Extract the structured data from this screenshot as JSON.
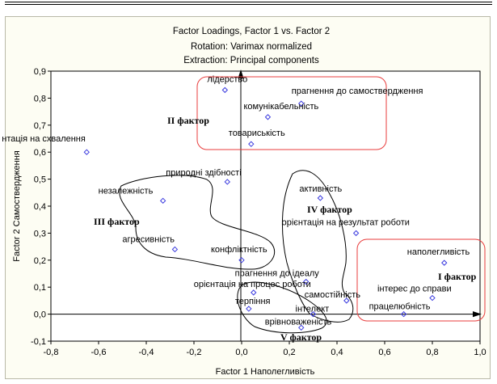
{
  "chart_data": {
    "type": "scatter",
    "title": "Factor Loadings, Factor 1 vs. Factor 2",
    "subtitle": [
      "Rotation: Varimax normalized",
      "Extraction: Principal components"
    ],
    "xlabel": "Factor 1 Наполегливість",
    "ylabel": "Factor 2 Самоствердження",
    "xlim": [
      -0.8,
      1.0
    ],
    "ylim": [
      -0.1,
      0.9
    ],
    "x_ticks": [
      "-0,8",
      "-0,6",
      "-0,4",
      "-0,2",
      "0,0",
      "0,2",
      "0,4",
      "0,6",
      "0,8",
      "1,0"
    ],
    "y_ticks": [
      "-0,1",
      "0,0",
      "0,1",
      "0,2",
      "0,3",
      "0,4",
      "0,5",
      "0,6",
      "0,7",
      "0,8",
      "0,9"
    ],
    "grid": false,
    "points": [
      {
        "label": "лідерство",
        "x": -0.07,
        "y": 0.83
      },
      {
        "label": "прагнення до самоствердження",
        "x": 0.25,
        "y": 0.78
      },
      {
        "label": "комунікабельність",
        "x": 0.11,
        "y": 0.73
      },
      {
        "label": "товариськість",
        "x": 0.04,
        "y": 0.63
      },
      {
        "label": "нтація на схвалення",
        "x": -0.65,
        "y": 0.6
      },
      {
        "label": "природні здібності",
        "x": -0.06,
        "y": 0.49
      },
      {
        "label": "незалежність",
        "x": -0.33,
        "y": 0.42
      },
      {
        "label": "активність",
        "x": 0.33,
        "y": 0.43
      },
      {
        "label": "орієнтація на результат роботи",
        "x": 0.48,
        "y": 0.3
      },
      {
        "label": "агресивність",
        "x": -0.28,
        "y": 0.24
      },
      {
        "label": "конфліктність",
        "x": 0.0,
        "y": 0.2
      },
      {
        "label": "наполегливість",
        "x": 0.85,
        "y": 0.19
      },
      {
        "label": "прагнення до ідеалу",
        "x": 0.27,
        "y": 0.12
      },
      {
        "label": "орієнтація на процес роботи",
        "x": 0.05,
        "y": 0.08
      },
      {
        "label": "терпіння",
        "x": 0.03,
        "y": 0.02
      },
      {
        "label": "самостійність",
        "x": 0.44,
        "y": 0.05
      },
      {
        "label": "інтерес до справи",
        "x": 0.8,
        "y": 0.06
      },
      {
        "label": "інтелект",
        "x": 0.3,
        "y": 0.0
      },
      {
        "label": "працелюбність",
        "x": 0.68,
        "y": 0.0
      },
      {
        "label": "врівноваженість",
        "x": 0.25,
        "y": -0.05
      }
    ],
    "annotations": [
      "I фактор",
      "II фактор",
      "III фактор",
      "IV фактор",
      "V фактор"
    ]
  },
  "colors": {
    "marker": "#3a3adf",
    "cluster_box": "#e83c3c",
    "cluster_outline": "#000000",
    "plot_bg": "#ffffff",
    "frame_bg": "#fdfdf3"
  }
}
